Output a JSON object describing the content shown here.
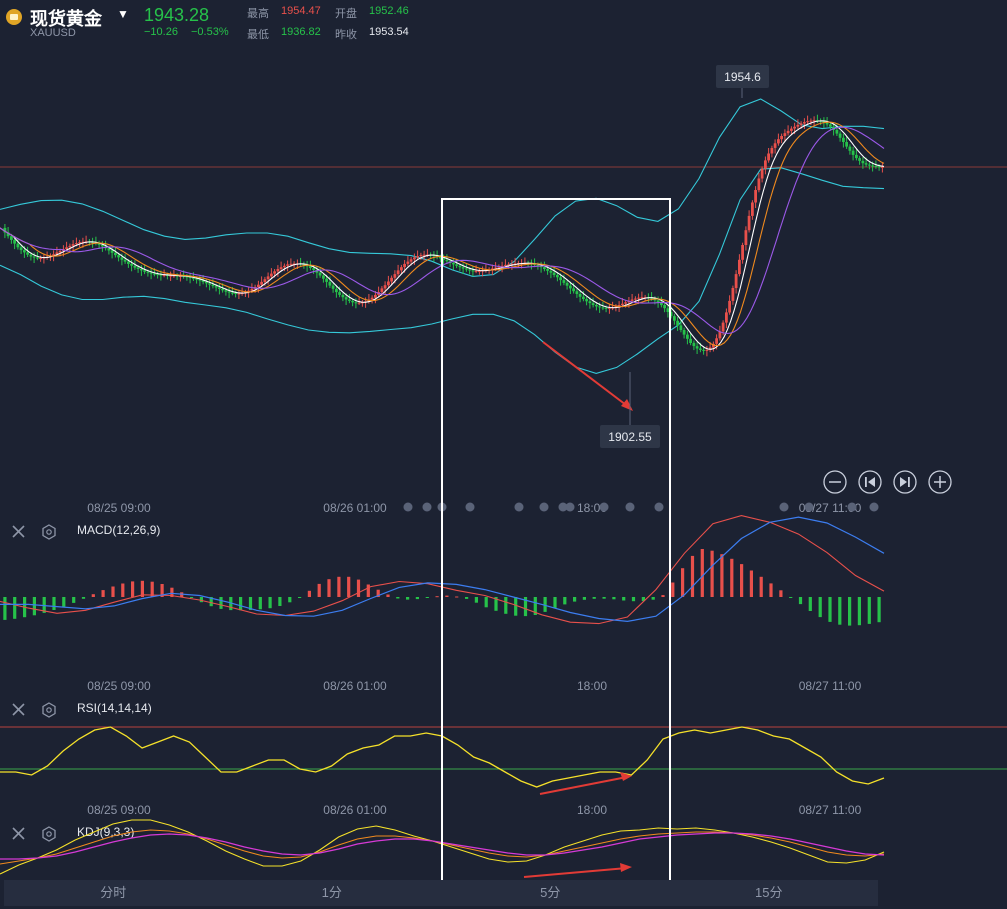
{
  "header": {
    "name": "现货黄金",
    "symbol": "XAUUSD",
    "price": "1943.28",
    "change": "−10.26",
    "change_pct": "−0.53%",
    "stats": [
      {
        "label": "最高",
        "value": "1954.47",
        "tone": "red"
      },
      {
        "label": "开盘",
        "value": "1952.46",
        "tone": "green"
      },
      {
        "label": "最低",
        "value": "1936.82",
        "tone": "green"
      },
      {
        "label": "昨收",
        "value": "1953.54",
        "tone": "white"
      }
    ]
  },
  "time_axis": {
    "labels": [
      "08/25 09:00",
      "08/26 01:00",
      "18:00",
      "08/27 11:00"
    ]
  },
  "panels": {
    "macd": {
      "label": "MACD(12,26,9)"
    },
    "rsi": {
      "label": "RSI(14,14,14)"
    },
    "kdj": {
      "label": "KDJ(9,3,3)"
    }
  },
  "tabs": [
    "分时",
    "1分",
    "5分",
    "15分"
  ],
  "colors": {
    "up": "#e8504b",
    "down": "#26c24a",
    "background": "#1c2232",
    "bollinger": "#35c9d9",
    "ma_fast": "#ffffff",
    "ma_mid": "#f08a1e",
    "ma_slow": "#9b59e8",
    "rsi": "#f5e12a",
    "macd_dif": "#e8504b",
    "macd_dea": "#3c7df0"
  },
  "chart_data": {
    "type": "candlestick",
    "symbol": "XAUUSD",
    "x": [
      "08/25 09:00",
      "08/26 01:00",
      "18:00",
      "08/27 11:00"
    ],
    "price_annotations": {
      "high": "1954.6",
      "low": "1902.55"
    },
    "close_path": [
      1930.1,
      1929.1,
      1928.3,
      1927.5,
      1926.7,
      1925.9,
      1925.3,
      1924.8,
      1924.3,
      1923.9,
      1923.7,
      1923.6,
      1923.6,
      1923.7,
      1923.8,
      1924.1,
      1924.4,
      1924.8,
      1925.1,
      1925.5,
      1925.9,
      1926.2,
      1926.6,
      1926.8,
      1927.0,
      1927.1,
      1927.2,
      1927.1,
      1927.0,
      1926.8,
      1926.4,
      1926.1,
      1925.7,
      1925.2,
      1924.7,
      1924.2,
      1923.7,
      1923.2,
      1922.8,
      1922.3,
      1921.9,
      1921.5,
      1921.2,
      1920.9,
      1920.6,
      1920.4,
      1920.2,
      1920.1,
      1920.0,
      1919.9,
      1919.9,
      1919.8,
      1919.8,
      1919.8,
      1919.7,
      1919.7,
      1919.6,
      1919.5,
      1919.3,
      1919.1,
      1918.9,
      1918.7,
      1918.4,
      1918.1,
      1917.8,
      1917.5,
      1917.2,
      1916.9,
      1916.6,
      1916.3,
      1916.1,
      1916.0,
      1915.9,
      1915.9,
      1916.0,
      1916.2,
      1916.5,
      1916.9,
      1917.3,
      1917.8,
      1918.4,
      1919.0,
      1919.6,
      1920.2,
      1920.7,
      1921.2,
      1921.6,
      1921.9,
      1922.2,
      1922.3,
      1922.4,
      1922.4,
      1922.3,
      1922.1,
      1921.8,
      1921.4,
      1921.0,
      1920.4,
      1919.8,
      1919.1,
      1918.4,
      1917.6,
      1916.9,
      1916.2,
      1915.6,
      1915.1,
      1914.6,
      1914.3,
      1914.0,
      1913.9,
      1913.9,
      1914.0,
      1914.2,
      1914.6,
      1915.0,
      1915.6,
      1916.2,
      1917.0,
      1917.7,
      1918.5,
      1919.3,
      1920.1,
      1920.9,
      1921.6,
      1922.3,
      1922.8,
      1923.3,
      1923.7,
      1924.0,
      1924.2,
      1924.3,
      1924.3,
      1924.2,
      1924.0,
      1923.8,
      1923.5,
      1923.2,
      1922.9,
      1922.5,
      1922.2,
      1921.9,
      1921.6,
      1921.3,
      1921.1,
      1920.9,
      1920.8,
      1920.8,
      1920.8,
      1920.9,
      1921.0,
      1921.1,
      1921.3,
      1921.5,
      1921.7,
      1921.9,
      1922.1,
      1922.2,
      1922.3,
      1922.4,
      1922.5,
      1922.5,
      1922.5,
      1922.4,
      1922.3,
      1922.1,
      1921.9,
      1921.6,
      1921.2,
      1920.8,
      1920.4,
      1919.9,
      1919.4,
      1918.8,
      1918.2,
      1917.6,
      1917.0,
      1916.4,
      1915.8,
      1915.2,
      1914.7,
      1914.2,
      1913.8,
      1913.4,
      1913.1,
      1912.9,
      1912.8,
      1912.7,
      1912.8,
      1912.9,
      1913.1,
      1913.4,
      1913.7,
      1914.0,
      1914.3,
      1914.6,
      1914.8,
      1915.0,
      1915.1,
      1915.1,
      1915.0,
      1914.8,
      1914.4,
      1914.0,
      1913.4,
      1912.7,
      1911.9,
      1911.0,
      1910.0,
      1909.0,
      1908.0,
      1907.0,
      1906.1,
      1905.2,
      1904.5,
      1904.0,
      1903.7,
      1903.5,
      1903.7,
      1904.2,
      1905.0,
      1906.2,
      1907.7,
      1909.6,
      1911.8,
      1914.3,
      1917.1,
      1920.1,
      1923.2,
      1926.4,
      1929.6,
      1932.7,
      1935.6,
      1938.3,
      1940.8,
      1942.9,
      1944.7,
      1946.2,
      1947.4,
      1948.4,
      1949.3,
      1950.0,
      1950.6,
      1951.1,
      1951.6,
      1952.0,
      1952.4,
      1952.7,
      1953.0,
      1953.2,
      1953.3,
      1953.4,
      1953.3,
      1953.2,
      1952.9,
      1952.5,
      1952.0,
      1951.3,
      1950.5,
      1949.6,
      1948.7,
      1947.7,
      1946.8,
      1945.9,
      1945.2,
      1944.6,
      1944.1,
      1943.8,
      1943.6,
      1943.5,
      1943.4,
      1943.3,
      1943.3
    ],
    "bollinger_upper_path": [
      1934.1,
      1935.2,
      1936.0,
      1936.1,
      1935.3,
      1933.7,
      1931.7,
      1929.7,
      1928.3,
      1927.6,
      1927.9,
      1928.6,
      1929.0,
      1929.0,
      1928.3,
      1926.9,
      1925.6,
      1924.8,
      1924.6,
      1924.5,
      1924.1,
      1922.9,
      1921.0,
      1919.6,
      1920.0,
      1922.8,
      1927.6,
      1932.7,
      1935.9,
      1936.5,
      1934.9,
      1932.4,
      1931.5,
      1934.2,
      1940.8,
      1949.7,
      1956.3,
      1958.0,
      1955.4,
      1952.4,
      1951.6,
      1952.1,
      1952.1,
      1951.6
    ],
    "bollinger_lower_path": [
      1922.0,
      1920.0,
      1917.5,
      1915.6,
      1914.6,
      1914.6,
      1915.1,
      1915.3,
      1914.8,
      1914.0,
      1913.4,
      1912.8,
      1911.8,
      1910.4,
      1909.1,
      1908.0,
      1907.5,
      1907.4,
      1907.7,
      1908.1,
      1908.5,
      1909.3,
      1910.4,
      1911.4,
      1911.4,
      1910.0,
      1907.0,
      1903.2,
      1900.0,
      1898.6,
      1899.9,
      1902.8,
      1906.1,
      1909.1,
      1914.2,
      1924.4,
      1936.2,
      1942.8,
      1943.1,
      1941.8,
      1940.4,
      1939.1,
      1938.8,
      1938.6
    ],
    "macd_hist_path": [
      -3.1,
      -2.9,
      -2.6,
      -2.2,
      -1.7,
      -1.1,
      -0.4,
      0.4,
      1.1,
      1.7,
      2.1,
      2.2,
      2.0,
      1.4,
      0.6,
      -0.3,
      -1.1,
      -1.6,
      -1.8,
      -1.8,
      -1.7,
      -1.5,
      -1.1,
      -0.3,
      0.8,
      2.0,
      2.7,
      2.8,
      2.3,
      1.4,
      0.5,
      -0.2,
      -0.4,
      -0.2,
      0.1,
      0.2,
      0.0,
      -0.6,
      -1.4,
      -2.0,
      -2.5,
      -2.6,
      -2.4,
      -1.8,
      -1.1,
      -0.6,
      -0.3,
      -0.2,
      -0.3,
      -0.5,
      -0.6,
      -0.5,
      0.3,
      2.6,
      5.2,
      6.5,
      6.2,
      5.5,
      4.6,
      3.5,
      2.4,
      1.2,
      0.0,
      -1.2,
      -2.4,
      -3.3,
      -3.8,
      -3.9,
      -3.7,
      -3.4
    ],
    "macd_dif_path": [
      -0.6,
      -1.5,
      -2.2,
      -1.8,
      -0.7,
      0.3,
      0.2,
      -0.4,
      -1.3,
      -2.3,
      -2.5,
      -1.9,
      -0.5,
      1.4,
      2.1,
      1.8,
      0.9,
      0.2,
      -1.0,
      -2.4,
      -3.4,
      -3.6,
      -2.7,
      1.0,
      5.9,
      9.9,
      11.0,
      10.1,
      8.5,
      6.0,
      2.9,
      0.8
    ],
    "macd_dea_path": [
      -1.0,
      -1.0,
      -1.3,
      -1.6,
      -1.2,
      -0.2,
      0.5,
      0.2,
      -0.7,
      -1.8,
      -2.5,
      -2.6,
      -1.8,
      -0.2,
      1.3,
      1.9,
      1.7,
      1.0,
      0.0,
      -1.0,
      -2.1,
      -2.9,
      -3.3,
      -2.6,
      0.3,
      4.3,
      7.9,
      10.1,
      10.8,
      10.0,
      8.1,
      5.9
    ],
    "rsi_path": [
      49.0,
      49.0,
      48.0,
      51.0,
      56.0,
      60.0,
      63.0,
      64.0,
      61.0,
      57.0,
      59.0,
      61.0,
      59.0,
      54.0,
      49.0,
      49.0,
      51.0,
      53.0,
      53.0,
      50.0,
      49.0,
      51.0,
      55.0,
      57.0,
      58.0,
      61.0,
      61.0,
      62.0,
      61.0,
      58.0,
      54.0,
      52.0,
      49.0,
      46.0,
      44.0,
      46.0,
      47.0,
      48.0,
      49.0,
      49.0,
      48.0,
      53.0,
      60.0,
      62.0,
      63.0,
      62.0,
      63.0,
      64.0,
      63.0,
      61.0,
      60.0,
      57.0,
      54.0,
      49.0,
      46.0,
      45.0,
      47.0
    ],
    "kdj_k_path": [
      38.0,
      41.0,
      44.0,
      48.0,
      54.0,
      60.0,
      66.0,
      70.0,
      72.0,
      71.0,
      68.0,
      63.0,
      57.0,
      51.0,
      46.0,
      44.0,
      45.0,
      50.0,
      57.0,
      63.0,
      66.0,
      66.0,
      64.0,
      61.0,
      57.0,
      53.0,
      49.0,
      46.0,
      45.0,
      47.0,
      51.0,
      55.0,
      59.0,
      63.0,
      66.0,
      68.0,
      69.0,
      70.0,
      70.0,
      69.0,
      67.0,
      64.0,
      60.0,
      55.0,
      50.0,
      47.0,
      46.0,
      48.0
    ],
    "kdj_d_path": [
      43.0,
      43.0,
      44.0,
      46.0,
      50.0,
      55.0,
      60.0,
      64.0,
      67.0,
      68.0,
      67.0,
      64.0,
      60.0,
      55.0,
      51.0,
      48.0,
      47.0,
      49.0,
      53.0,
      58.0,
      61.0,
      63.0,
      63.0,
      61.0,
      58.0,
      55.0,
      52.0,
      49.0,
      47.0,
      47.0,
      49.0,
      52.0,
      55.0,
      59.0,
      63.0,
      65.0,
      67.0,
      68.0,
      69.0,
      69.0,
      68.0,
      66.0,
      63.0,
      59.0,
      55.0,
      51.0,
      48.0,
      47.0
    ]
  }
}
